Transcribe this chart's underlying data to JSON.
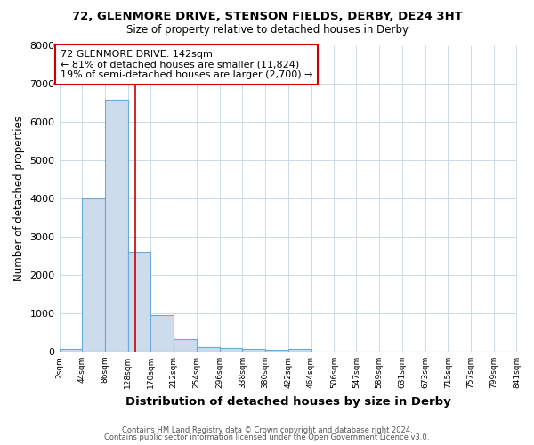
{
  "title1": "72, GLENMORE DRIVE, STENSON FIELDS, DERBY, DE24 3HT",
  "title2": "Size of property relative to detached houses in Derby",
  "xlabel": "Distribution of detached houses by size in Derby",
  "ylabel": "Number of detached properties",
  "bar_edges": [
    2,
    44,
    86,
    128,
    170,
    212,
    254,
    296,
    338,
    380,
    422,
    464,
    506,
    547,
    589,
    631,
    673,
    715,
    757,
    799,
    841
  ],
  "bar_heights": [
    75,
    4000,
    6600,
    2600,
    950,
    320,
    120,
    100,
    60,
    50,
    60,
    0,
    0,
    0,
    0,
    0,
    0,
    0,
    0,
    0
  ],
  "bar_color": "#ccdcec",
  "bar_edgecolor": "#6aaad4",
  "property_size": 142,
  "vline_color": "#cc0000",
  "annotation_line1": "72 GLENMORE DRIVE: 142sqm",
  "annotation_line2": "← 81% of detached houses are smaller (11,824)",
  "annotation_line3": "19% of semi-detached houses are larger (2,700) →",
  "annotation_box_edgecolor": "#cc0000",
  "ylim": [
    0,
    8000
  ],
  "yticks": [
    0,
    1000,
    2000,
    3000,
    4000,
    5000,
    6000,
    7000,
    8000
  ],
  "xtick_labels": [
    "2sqm",
    "44sqm",
    "86sqm",
    "128sqm",
    "170sqm",
    "212sqm",
    "254sqm",
    "296sqm",
    "338sqm",
    "380sqm",
    "422sqm",
    "464sqm",
    "506sqm",
    "547sqm",
    "589sqm",
    "631sqm",
    "673sqm",
    "715sqm",
    "757sqm",
    "799sqm",
    "841sqm"
  ],
  "footer1": "Contains HM Land Registry data © Crown copyright and database right 2024.",
  "footer2": "Contains public sector information licensed under the Open Government Licence v3.0.",
  "fig_bg_color": "#ffffff",
  "plot_bg_color": "#ffffff",
  "grid_color": "#ccd9e8"
}
